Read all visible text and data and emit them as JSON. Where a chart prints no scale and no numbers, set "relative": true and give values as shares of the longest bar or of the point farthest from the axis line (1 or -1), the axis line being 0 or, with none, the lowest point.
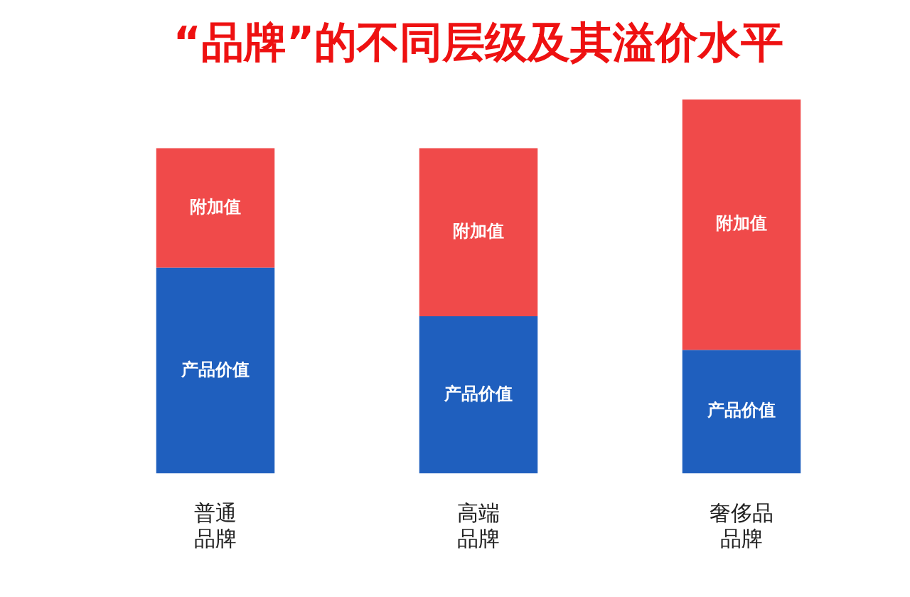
{
  "chart_data": {
    "type": "bar",
    "title": "“品牌”的不同层级及其溢价水平",
    "categories": [
      "普通品牌",
      "高端品牌",
      "奢侈品品牌"
    ],
    "stacked": true,
    "relative": true,
    "legend": false,
    "grid": false,
    "series": [
      {
        "name": "产品价值",
        "color": "#1f5fbe",
        "values": [
          0.55,
          0.42,
          0.33
        ]
      },
      {
        "name": "附加值",
        "color": "#f04a4a",
        "values": [
          0.32,
          0.45,
          0.67
        ]
      }
    ]
  }
}
